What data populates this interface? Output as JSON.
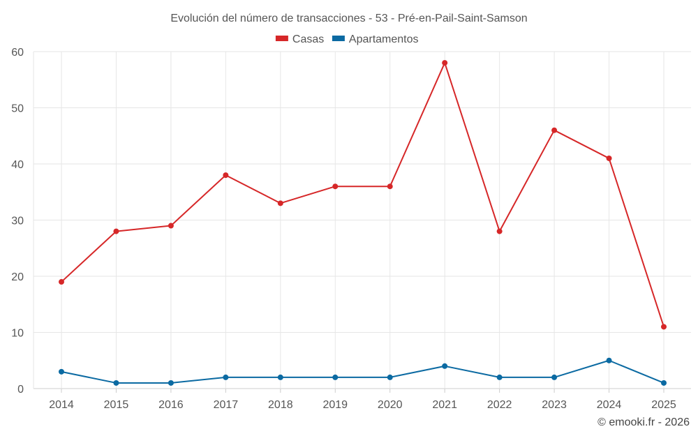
{
  "chart_data": {
    "type": "line",
    "title": "Evolución del número de transacciones - 53 - Pré-en-Pail-Saint-Samson",
    "categories": [
      "2014",
      "2015",
      "2016",
      "2017",
      "2018",
      "2019",
      "2020",
      "2021",
      "2022",
      "2023",
      "2024",
      "2025"
    ],
    "series": [
      {
        "name": "Casas",
        "color": "#d62728",
        "values": [
          19,
          28,
          29,
          38,
          33,
          36,
          36,
          58,
          28,
          46,
          41,
          11
        ]
      },
      {
        "name": "Apartamentos",
        "color": "#0b6aa2",
        "values": [
          3,
          1,
          1,
          2,
          2,
          2,
          2,
          4,
          2,
          2,
          5,
          1
        ]
      }
    ],
    "yticks": [
      0,
      10,
      20,
      30,
      40,
      50,
      60
    ],
    "ylim": [
      0,
      60
    ],
    "grid": true,
    "legend": "top-center",
    "credit": "© emooki.fr - 2026"
  }
}
